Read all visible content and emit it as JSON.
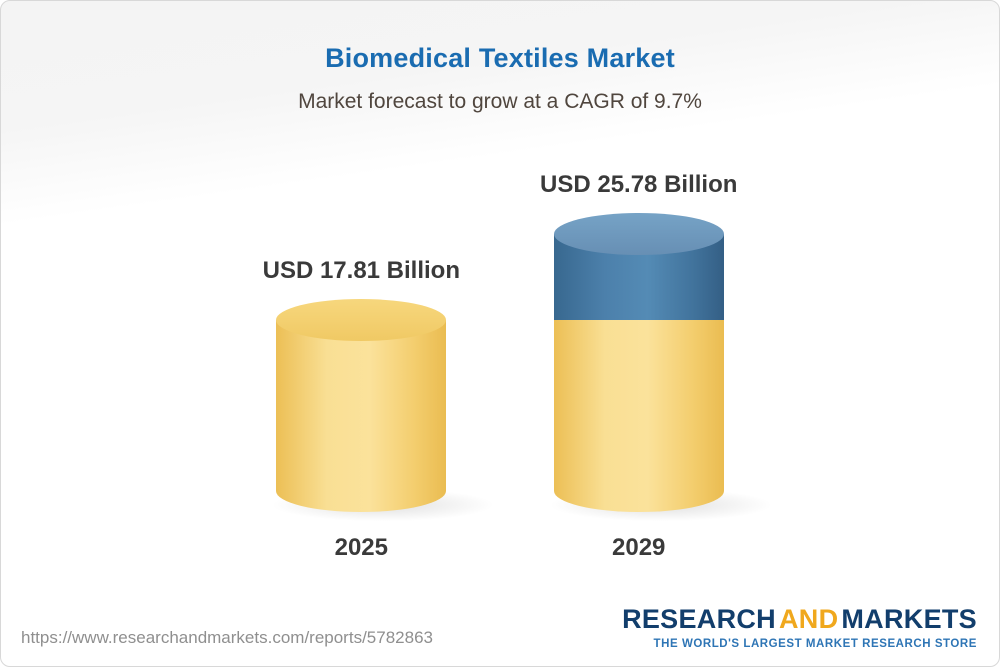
{
  "header": {
    "title": "Biomedical Textiles Market",
    "subtitle": "Market forecast to grow at a CAGR of 9.7%"
  },
  "chart_data": {
    "type": "bar",
    "subtype": "3d-cylinder",
    "title": "Biomedical Textiles Market",
    "subtitle": "Market forecast to grow at a CAGR of 9.7%",
    "cagr_percent": 9.7,
    "categories": [
      "2025",
      "2029"
    ],
    "values": [
      17.81,
      25.78
    ],
    "value_labels": [
      "USD 17.81 Billion",
      "USD 25.78 Billion"
    ],
    "unit": "USD Billion",
    "ylim": [
      0,
      25.78
    ],
    "grid": false,
    "legend": false,
    "colors": {
      "base_segment": "#f6d27c",
      "growth_segment": "#4a7ba6"
    },
    "annotation": "2029 cylinder shows the 2025-equivalent base in yellow with the incremental growth segment in blue on top"
  },
  "footer": {
    "url": "https://www.researchandmarkets.com/reports/5782863",
    "logo": {
      "research": "RESEARCH",
      "and": "AND",
      "markets": "MARKETS",
      "tagline": "THE WORLD'S LARGEST MARKET RESEARCH STORE"
    }
  }
}
